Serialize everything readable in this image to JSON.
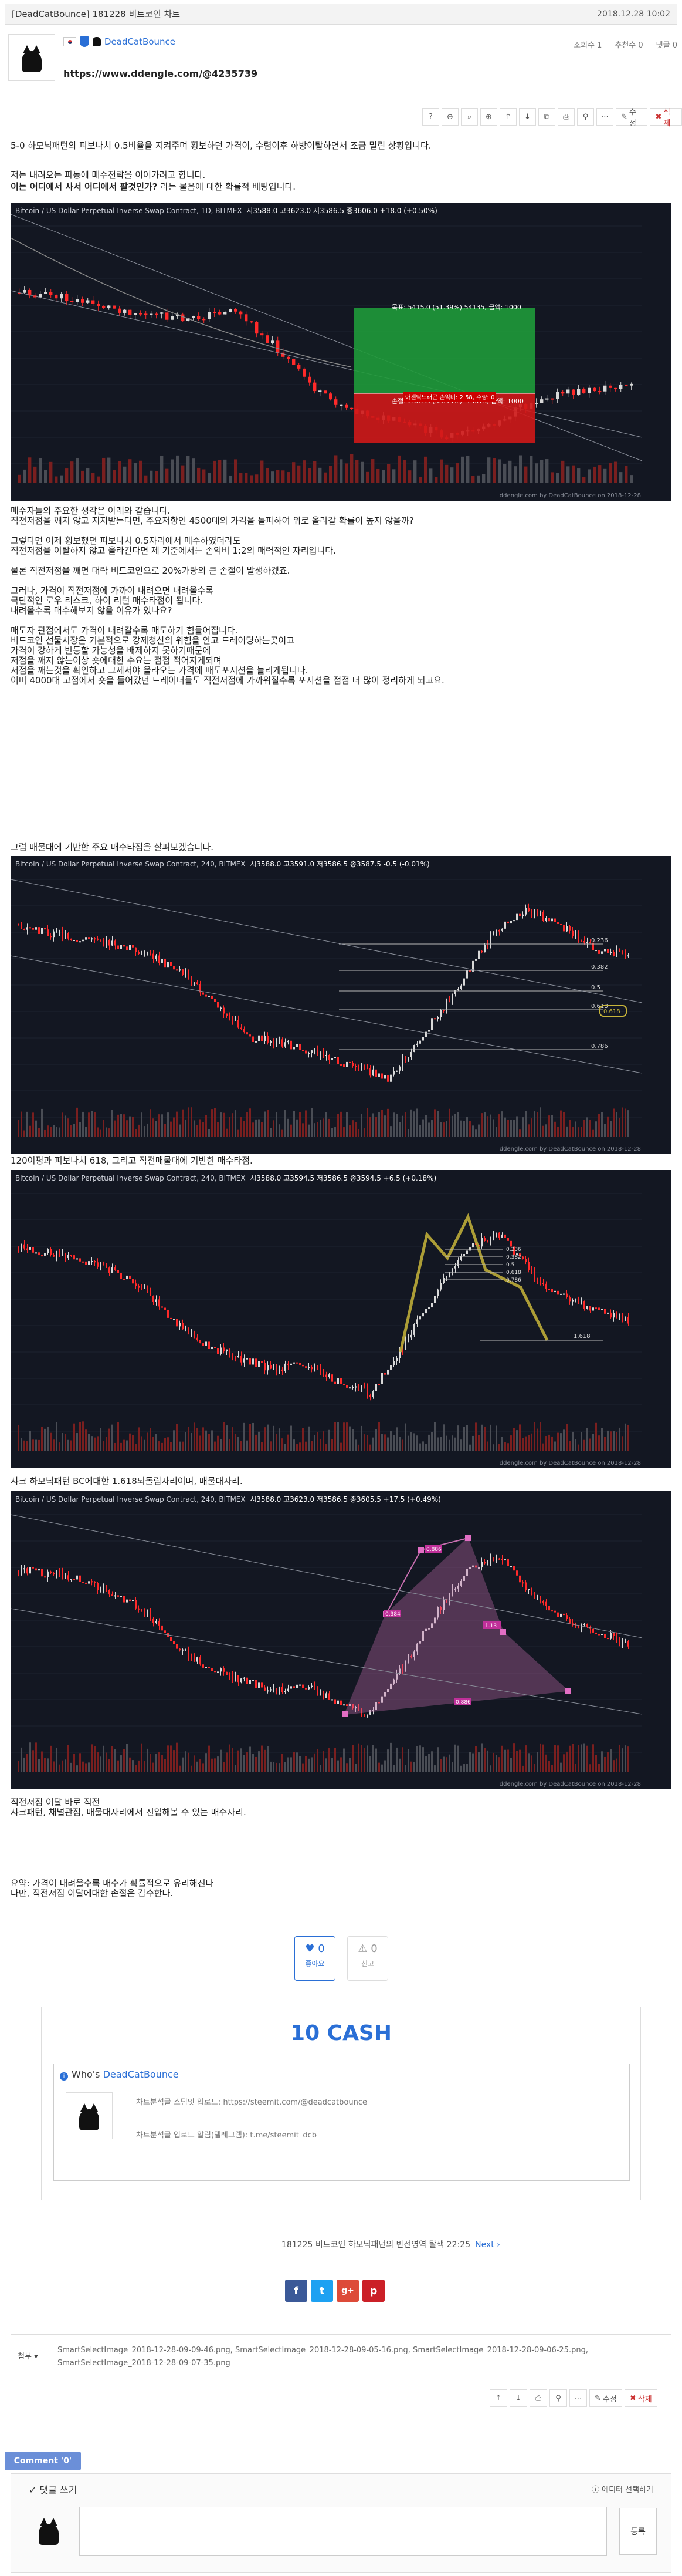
{
  "header": {
    "title": "[DeadCatBounce]  181228 비트코인 차트",
    "datetime": "2018.12.28 10:02",
    "author": "DeadCatBounce",
    "url": "https://www.ddengle.com/@4235739",
    "views": "조회수 1",
    "recommend": "추천수 0",
    "comments": "댓글 0"
  },
  "toolbar": {
    "help": "?",
    "edit": "수정",
    "delete": "삭제"
  },
  "paragraphs": {
    "p1": "5-0 하모닉패턴의 피보나치 0.5비율을 지켜주며 횡보하던 가격이, 수렴이후 하방이탈하면서 조금 밀린 상황입니다.",
    "p2": "저는 내려오는 파동에 매수전략을 이어가려고 합니다.",
    "p2b": "이는 어디에서 사서 어디에서 팔것인가?",
    "p2c": " 라는 물음에 대한 확률적 베팅입니다.",
    "p3": "매수자들의 주요한 생각은 아래와 같습니다.\n직전저점을 깨지 않고 지지받는다면, 주요저항인 4500대의 가격을 돌파하여 위로 올라갈 확률이 높지 않을까?\n\n그렇다면 어제 횡보했던 피보나치 0.5자리에서 매수하였더라도\n직전저점을 이탈하지 않고 올라간다면 제 기준에서는 손익비 1:2의 매력적인 자리입니다.\n\n물론 직전저점을 깨면 대략 비트코인으로 20%가량의 큰 손절이 발생하겠죠.\n\n그러나, 가격이 직전저점에 가까이 내려오면 내려올수록\n극단적인 로우 리스크, 하이 리턴 매수타점이 됩니다.\n내려올수록 매수해보지 않을 이유가 있나요?\n\n매도자 관점에서도 가격이 내려갈수록 매도하기 힘들어집니다.\n비트코인 선물시장은 기본적으로 강제청산의 위험을 안고 트레이딩하는곳이고\n가격이 강하게 반등할 가능성을 배제하지 못하기때문에\n저점을 깨지 않는이상 숏에대한 수요는 점점 적어지게되며\n저점을 깨는것을 확인하고 그제서야 올라오는 가격에 매도포지션을 늘리게됩니다.\n이미 4000대 고점에서 숏을 들어갔던 트레이더들도 직전저점에 가까워질수록 포지션을 점점 더 많이 정리하게 되고요.",
    "p4": "그럼 매물대에 기반한 주요 매수타점을 살펴보겠습니다.",
    "p5": "매도자 관점에서도 가격이 내려갈수록 매도하기 힘들어집니다.",
    "p6": "120이평과 피보나치 618, 그리고 직전매물대에 기반한 매수타점.",
    "p7": "샤크 하모닉패턴 BC에대한 1.618되돌림자리이며, 매물대자리.",
    "p8": "직전저점 이탈 바로 직전\n샤크패턴, 채널관점, 매물대자리에서 진입해볼 수 있는 매수자리.",
    "p9": "요약: 가격이 내려올수록 매수가 확률적으로 유리해진다\n다만, 직전저점 이탈에대한 손절은 감수한다."
  },
  "charts": {
    "c1": {
      "sym": "Bitcoin / US Dollar Perpetual Inverse Swap Contract, 1D, BITMEX",
      "o": "시3588.0",
      "h": "고3623.0",
      "l": "저3586.5",
      "c": "종3606.0 +18.0 (+0.50%)",
      "foot": "ddengle.com by DeadCatBounce on 2018-12-28",
      "tp": "목표: 5415.0 (51.39%) 54135, 금액: 1000",
      "sl": "손절: 2367.5 (33.93%) -15075, 금액: 1000",
      "mid": "아캔틱드래곤 손익비: 2.58, 수량: 0"
    },
    "c2": {
      "sym": "Bitcoin / US Dollar Perpetual Inverse Swap Contract, 240, BITMEX",
      "o": "시3588.0",
      "h": "고3591.0",
      "l": "저3586.5",
      "c": "종3587.5 -0.5 (-0.01%)",
      "foot": "ddengle.com by DeadCatBounce on 2018-12-28"
    },
    "c3": {
      "sym": "Bitcoin / US Dollar Perpetual Inverse Swap Contract, 240, BITMEX",
      "o": "시3588.0",
      "h": "고3594.5",
      "l": "저3586.5",
      "c": "종3594.5 +6.5 (+0.18%)",
      "foot": "ddengle.com by DeadCatBounce on 2018-12-28"
    },
    "c4": {
      "sym": "Bitcoin / US Dollar Perpetual Inverse Swap Contract, 240, BITMEX",
      "o": "시3588.0",
      "h": "고3623.0",
      "l": "저3586.5",
      "c": "종3605.5 +17.5 (+0.49%)",
      "foot": "ddengle.com by DeadCatBounce on 2018-12-28"
    }
  },
  "fib_labels": [
    "0.236",
    "0.382",
    "0.5",
    "0.618",
    "0.786"
  ],
  "fib_ext": "1.618",
  "c4_labels": [
    "0.886",
    "1.13",
    "0.384",
    "0.886"
  ],
  "votes": {
    "like_count": "0",
    "like_label": "좋아요",
    "report_count": "0",
    "report_label": "신고"
  },
  "cash": "10 CASH",
  "who": {
    "title": "Who's ",
    "name": "DeadCatBounce",
    "line1": "차트분석글 스팀잇 업로드: https://steemit.com/@deadcatbounce",
    "line2": "차트분석글 업로드 알림(텔레그램): t.me/steemit_dcb"
  },
  "next": {
    "prev_text": "181225 비트코인 하모닉패턴의 반전영역 탈색  22:25",
    "next_label": "Next ›"
  },
  "share": [
    "f",
    "t",
    "g+",
    "p"
  ],
  "attach": {
    "label": "첨부",
    "files": "SmartSelectImage_2018-12-28-09-09-46.png,  SmartSelectImage_2018-12-28-09-05-16.png,  SmartSelectImage_2018-12-28-09-06-25.png,  SmartSelectImage_2018-12-28-09-07-35.png"
  },
  "comment": {
    "tab": "Comment '0'",
    "heading": "댓글 쓰기",
    "editor": "에디터 선택하기",
    "submit": "등록"
  },
  "colors": {
    "accent": "#2a6fd6",
    "chart_bg": "#131722",
    "up": "#d8d8d8",
    "down": "#ff2a2a",
    "yellow": "#c8b53a",
    "pink": "#c86fb0"
  }
}
